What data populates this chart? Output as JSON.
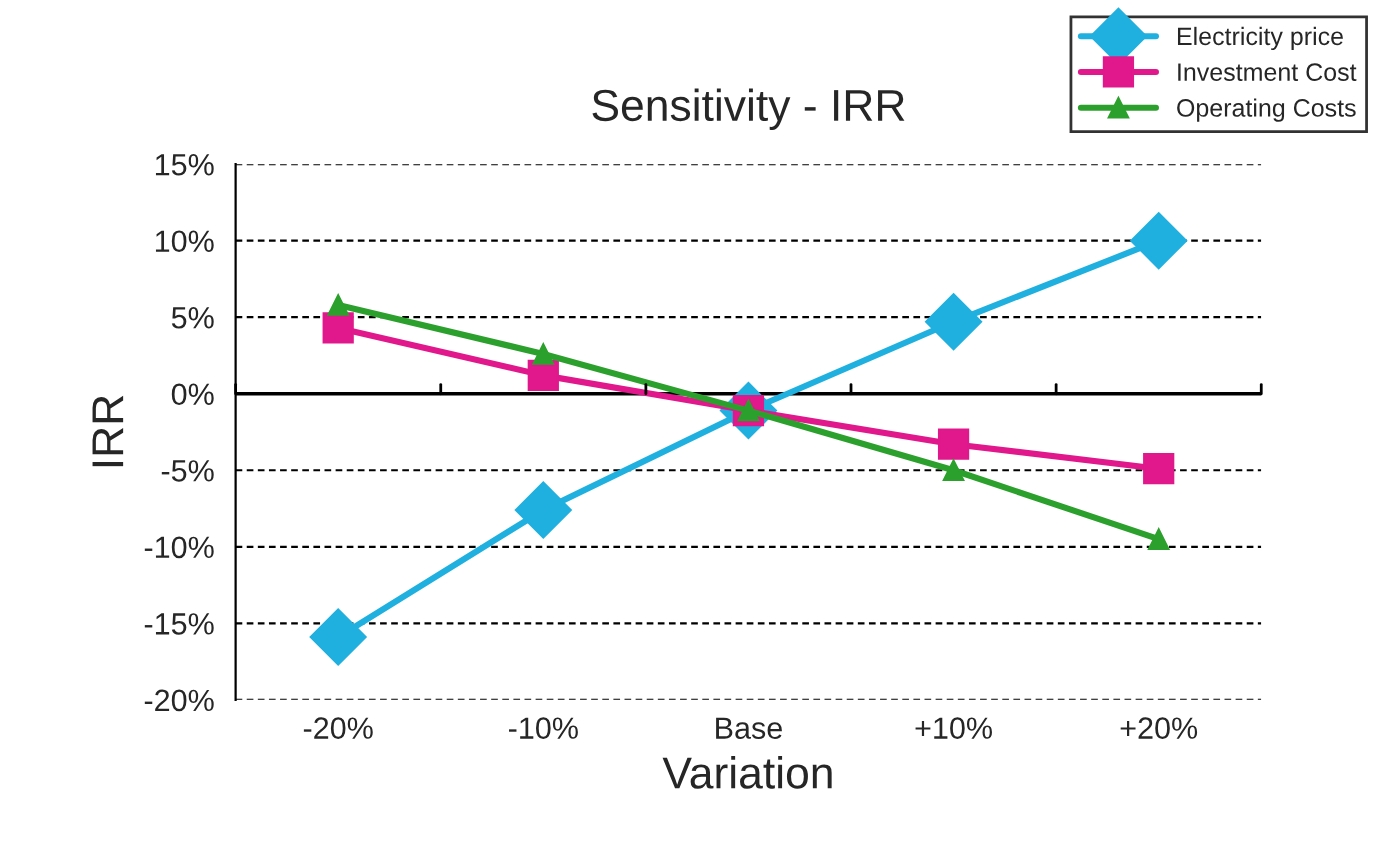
{
  "chart_data": {
    "type": "line",
    "title": "Sensitivity - IRR",
    "xlabel": "Variation",
    "ylabel": "IRR",
    "categories": [
      "-20%",
      "-10%",
      "Base",
      "+10%",
      "+20%"
    ],
    "series": [
      {
        "name": "Electricity price",
        "color": "#1fb0e0",
        "marker": "diamond",
        "values": [
          -15.9,
          -7.6,
          -1.1,
          4.7,
          10.0
        ]
      },
      {
        "name": "Investment Cost",
        "color": "#e0188c",
        "marker": "square",
        "values": [
          4.3,
          1.2,
          -1.1,
          -3.3,
          -4.9
        ]
      },
      {
        "name": "Operating Costs",
        "color": "#2ca02c",
        "marker": "triangle",
        "values": [
          5.8,
          2.6,
          -1.1,
          -5.0,
          -9.5
        ]
      }
    ],
    "ylim": [
      -20,
      15
    ],
    "yticks": [
      {
        "value": -20,
        "label": "-20%"
      },
      {
        "value": -15,
        "label": "-15%"
      },
      {
        "value": -10,
        "label": "-10%"
      },
      {
        "value": -5,
        "label": "-5%"
      },
      {
        "value": 0,
        "label": "0%"
      },
      {
        "value": 5,
        "label": "5%"
      },
      {
        "value": 10,
        "label": "10%"
      },
      {
        "value": 15,
        "label": "15%"
      }
    ],
    "grid": "y",
    "legend": "top right",
    "line_style": "solid"
  }
}
